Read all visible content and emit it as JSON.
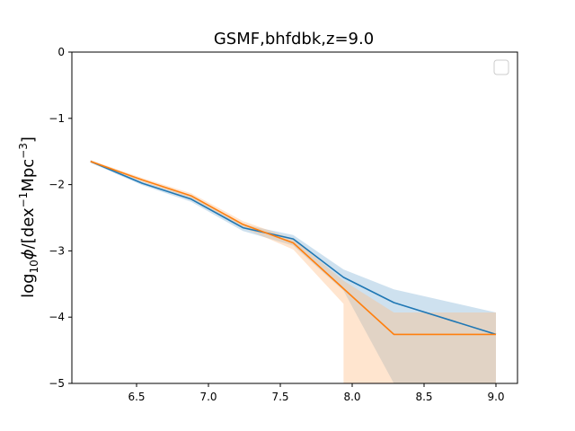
{
  "chart_data": {
    "type": "line",
    "title": "GSMF,bhfdbk,z=9.0",
    "xlabel": "",
    "ylabel_parts": {
      "prefix": "log",
      "prefix_sub": "10",
      "phi": "ϕ",
      "middle": "/[dex",
      "dex_exp": "−1",
      "mpc": "Mpc",
      "mpc_exp": "−3",
      "suffix": "]"
    },
    "xlim": [
      6.05,
      9.15
    ],
    "ylim": [
      -5,
      0
    ],
    "xticks": [
      {
        "value": 6.5,
        "label": "6.5"
      },
      {
        "value": 7.0,
        "label": "7.0"
      },
      {
        "value": 7.5,
        "label": "7.5"
      },
      {
        "value": 8.0,
        "label": "8.0"
      },
      {
        "value": 8.5,
        "label": "8.5"
      },
      {
        "value": 9.0,
        "label": "9.0"
      }
    ],
    "yticks": [
      {
        "value": 0,
        "label": "0"
      },
      {
        "value": -1,
        "label": "−1"
      },
      {
        "value": -2,
        "label": "−2"
      },
      {
        "value": -3,
        "label": "−3"
      },
      {
        "value": -4,
        "label": "−4"
      },
      {
        "value": -5,
        "label": "−5"
      }
    ],
    "legend": {
      "placement": "top-right",
      "entries": []
    },
    "series": [
      {
        "color": "#1f77b4",
        "band_color": "#1f77b4",
        "band_opacity": 0.22,
        "x": [
          6.18,
          6.54,
          6.88,
          7.24,
          7.59,
          7.94,
          8.29,
          9.0
        ],
        "y": [
          -1.65,
          -1.98,
          -2.22,
          -2.65,
          -2.82,
          -3.4,
          -3.78,
          -4.26
        ],
        "upper": [
          -1.63,
          -1.95,
          -2.18,
          -2.6,
          -2.76,
          -3.28,
          -3.58,
          -3.93
        ],
        "lower": [
          -1.67,
          -2.01,
          -2.26,
          -2.7,
          -2.92,
          -3.6,
          -5.0,
          -5.0
        ]
      },
      {
        "color": "#ff7f0e",
        "band_color": "#ffbe86",
        "band_opacity": 0.4,
        "x": [
          6.18,
          6.54,
          6.88,
          7.24,
          7.59,
          7.94,
          8.29,
          9.0
        ],
        "y": [
          -1.65,
          -1.93,
          -2.17,
          -2.6,
          -2.88,
          -3.57,
          -4.26,
          -4.26
        ],
        "upper": [
          -1.63,
          -1.9,
          -2.13,
          -2.55,
          -2.82,
          -3.45,
          -3.93,
          -3.93
        ],
        "lower": [
          -1.67,
          -1.96,
          -2.21,
          -2.65,
          -2.98,
          -3.8,
          -5.0,
          -5.0
        ],
        "band_x": [
          6.18,
          6.54,
          6.88,
          7.24,
          7.59,
          7.94,
          7.94,
          8.29,
          8.29,
          9.0
        ],
        "band_upper": [
          -1.63,
          -1.9,
          -2.13,
          -2.55,
          -2.82,
          -3.45,
          -3.45,
          -3.93,
          -3.93,
          -3.93
        ],
        "band_lower": [
          -1.67,
          -1.96,
          -2.21,
          -2.65,
          -2.98,
          -3.8,
          -5.0,
          -5.0,
          -5.0,
          -5.0
        ]
      }
    ]
  }
}
